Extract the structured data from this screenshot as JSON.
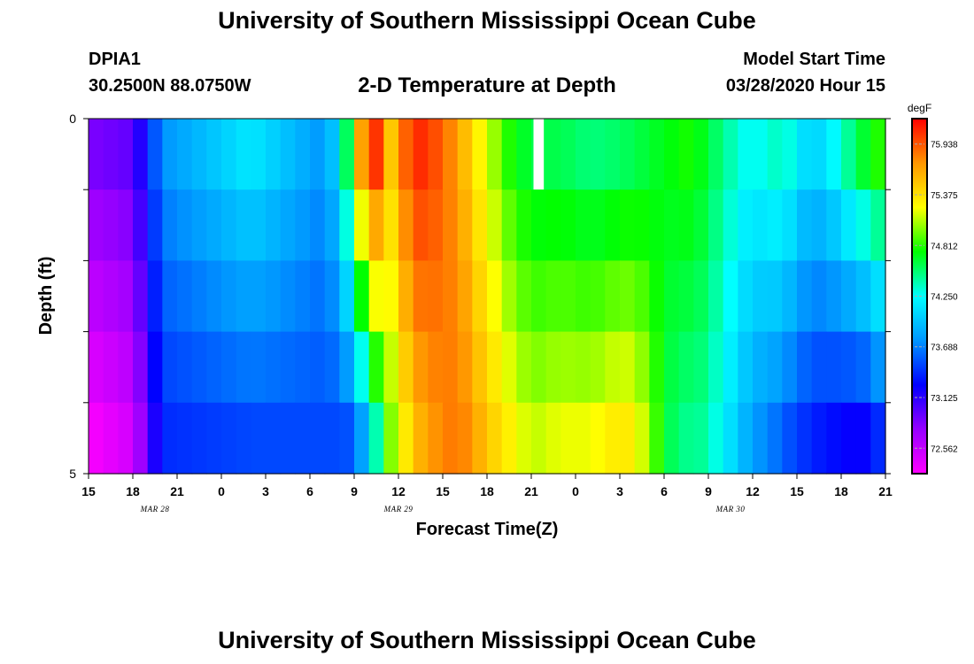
{
  "header": {
    "title": "University of Southern Mississippi Ocean Cube",
    "station": "DPIA1",
    "coordinates": "30.2500N 88.0750W",
    "plot_title": "2-D Temperature at Depth",
    "model_start_label": "Model Start Time",
    "model_start_value": "03/28/2020 Hour 15"
  },
  "footer": {
    "title": "University of Southern Mississippi Ocean Cube"
  },
  "chart_data": {
    "type": "heatmap",
    "title": "2-D Temperature at Depth",
    "xlabel": "Forecast Time(Z)",
    "ylabel": "Depth (ft)",
    "x_tick_labels": [
      "15",
      "18",
      "21",
      "0",
      "3",
      "6",
      "9",
      "12",
      "15",
      "18",
      "21",
      "0",
      "3",
      "6",
      "9",
      "12",
      "15",
      "18",
      "21"
    ],
    "date_labels": [
      {
        "label": "MAR 28",
        "tick_index": 1.5
      },
      {
        "label": "MAR 29",
        "tick_index": 7
      },
      {
        "label": "MAR 30",
        "tick_index": 14.5
      }
    ],
    "y_tick_labels": [
      "0",
      "5"
    ],
    "ylim": [
      0,
      5
    ],
    "depth_levels": 5,
    "colorbar": {
      "unit": "degF",
      "min": 72.28,
      "max": 76.22,
      "tick_values": [
        "75.938",
        "75.375",
        "74.812",
        "74.250",
        "73.688",
        "73.125",
        "72.562"
      ],
      "color_stops": [
        "#ff00ff",
        "#9600ff",
        "#0000ff",
        "#0096ff",
        "#00ffff",
        "#00ff00",
        "#ffff00",
        "#ff9600",
        "#ff0000"
      ]
    },
    "time_keypoints": [
      0,
      3,
      5,
      11,
      16,
      16.5,
      17.3,
      18,
      18.7,
      19.5,
      20.5,
      22,
      23,
      25,
      26,
      27,
      28.5,
      30,
      32,
      34,
      36,
      37,
      38,
      39,
      40,
      41,
      42,
      43,
      44,
      45,
      46,
      47,
      48,
      49,
      50,
      51,
      52,
      53,
      54
    ],
    "surface_values": [
      72.85,
      72.95,
      73.75,
      74.15,
      73.75,
      73.95,
      74.35,
      75.1,
      75.9,
      76.05,
      75.5,
      76.1,
      76.05,
      75.7,
      75.4,
      75.15,
      74.8,
      74.6,
      74.6,
      74.5,
      74.55,
      74.6,
      74.65,
      74.7,
      74.75,
      74.8,
      74.6,
      74.5,
      74.3,
      74.25,
      74.3,
      74.4,
      74.2,
      74.0,
      74.15,
      74.3,
      74.6,
      74.7,
      74.9
    ],
    "bottom_values": [
      72.3,
      72.5,
      73.4,
      73.5,
      73.5,
      73.5,
      73.5,
      73.6,
      73.9,
      74.4,
      75.0,
      75.5,
      75.7,
      75.85,
      75.7,
      75.5,
      75.3,
      75.1,
      75.2,
      75.2,
      75.35,
      75.3,
      75.0,
      74.7,
      74.45,
      74.5,
      74.4,
      74.2,
      74.0,
      73.8,
      73.7,
      73.6,
      73.45,
      73.4,
      73.3,
      73.3,
      73.2,
      73.3,
      73.5
    ],
    "missing_cells": [
      {
        "time_step": 30,
        "depth_level": 0
      }
    ]
  }
}
